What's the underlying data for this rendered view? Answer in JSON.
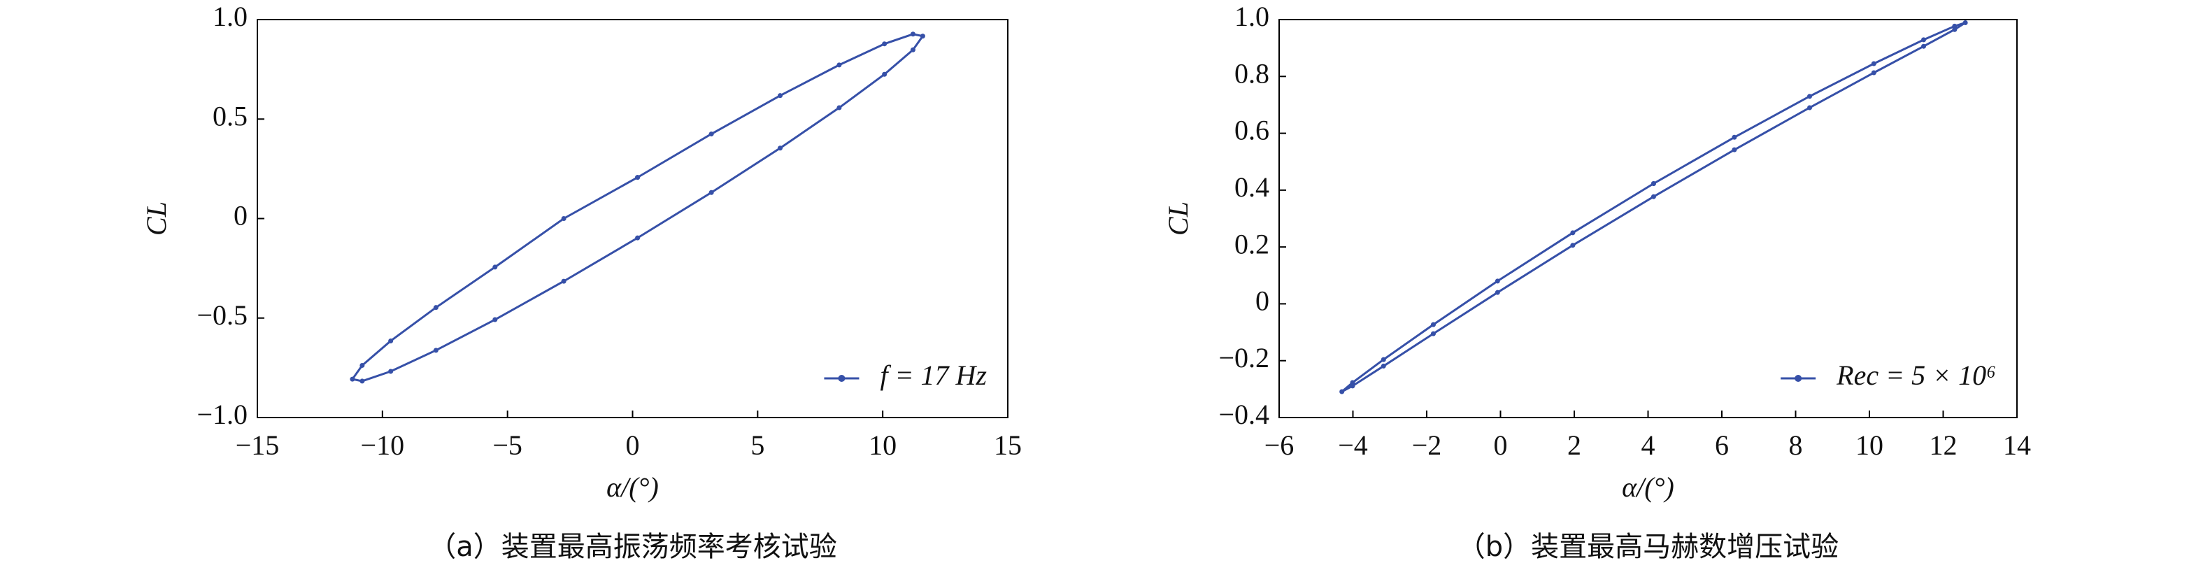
{
  "chart_data": [
    {
      "type": "line",
      "caption": "（a）装置最高振荡频率考核试验",
      "xlabel": "α/(°)",
      "ylabel": "CL",
      "legend": "lower right",
      "xlim": [
        -15,
        15
      ],
      "ylim": [
        -1,
        1
      ],
      "xticks": [
        {
          "value": -15,
          "label": "−15"
        },
        {
          "value": -10,
          "label": "−10"
        },
        {
          "value": -5,
          "label": "−5"
        },
        0,
        5,
        10,
        15
      ],
      "yticks": [
        {
          "value": -1,
          "label": "−1.0"
        },
        {
          "value": -0.5,
          "label": "−0.5"
        },
        0,
        0.5,
        {
          "value": 1,
          "label": "1.0"
        }
      ],
      "series": [
        {
          "name": "f = 17 Hz",
          "color": "#3650a8",
          "x": [
            0.2,
            3.15,
            5.9,
            8.26,
            10.07,
            11.21,
            11.6,
            11.21,
            10.07,
            8.26,
            5.9,
            3.15,
            0.2,
            -2.75,
            -5.5,
            -7.86,
            -9.67,
            -10.81,
            -11.2,
            -10.81,
            -9.67,
            -7.86,
            -5.5,
            -2.75,
            0.2
          ],
          "values": [
            0.207,
            0.425,
            0.618,
            0.772,
            0.878,
            0.927,
            0.917,
            0.848,
            0.725,
            0.557,
            0.354,
            0.131,
            -0.097,
            -0.315,
            -0.508,
            -0.662,
            -0.768,
            -0.817,
            -0.807,
            -0.738,
            -0.615,
            -0.447,
            -0.244,
            0.0,
            0.207
          ]
        }
      ]
    },
    {
      "type": "line",
      "caption": "（b）装置最高马赫数增压试验",
      "xlabel": "α/(°)",
      "ylabel": "CL",
      "legend": "lower right",
      "xlim": [
        -6,
        14
      ],
      "ylim": [
        -0.4,
        1
      ],
      "xticks": [
        {
          "value": -6,
          "label": "−6"
        },
        {
          "value": -4,
          "label": "−4"
        },
        {
          "value": -2,
          "label": "−2"
        },
        0,
        2,
        4,
        6,
        8,
        10,
        12,
        14
      ],
      "yticks": [
        {
          "value": -0.4,
          "label": "−0.4"
        },
        {
          "value": -0.2,
          "label": "−0.2"
        },
        0,
        0.2,
        0.4,
        0.6,
        0.8,
        {
          "value": 1,
          "label": "1.0"
        }
      ],
      "series": [
        {
          "name": "Rec = 5 × 10⁶",
          "color": "#3650a8",
          "x": [
            4.15,
            6.34,
            8.38,
            10.12,
            11.47,
            12.31,
            12.6,
            12.31,
            11.47,
            10.12,
            8.38,
            6.34,
            4.15,
            1.96,
            -0.08,
            -1.82,
            -3.17,
            -4.01,
            -4.3,
            -4.01,
            -3.17,
            -1.82,
            -0.08,
            1.96,
            4.15
          ],
          "values": [
            0.423,
            0.586,
            0.73,
            0.845,
            0.929,
            0.977,
            0.989,
            0.965,
            0.906,
            0.813,
            0.69,
            0.542,
            0.377,
            0.206,
            0.04,
            -0.105,
            -0.219,
            -0.289,
            -0.309,
            -0.277,
            -0.196,
            -0.073,
            0.08,
            0.25,
            0.423
          ]
        }
      ]
    }
  ]
}
